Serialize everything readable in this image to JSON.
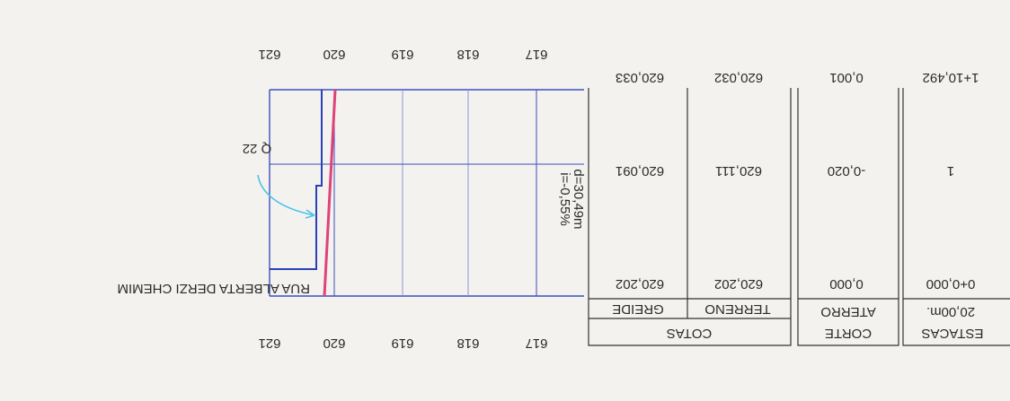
{
  "profile": {
    "street": "RUA ALBERTA DERZI CHEMIM",
    "point": "Q 22",
    "slope": "i=-0,55%",
    "distance": "d=30,49m",
    "elevations": [
      "621",
      "620",
      "619",
      "618",
      "617"
    ]
  },
  "table": {
    "headers": {
      "cotas": "COTAS",
      "greide": "GREIDE",
      "terreno": "TERRENO",
      "corte": "CORTE",
      "aterro": "ATERRO",
      "estacas": "ESTACAS",
      "spacing": "20,00m."
    },
    "rows": [
      [
        "0+0,000",
        "0,000",
        "620,202",
        "620,202"
      ],
      [
        "1",
        "-0,020",
        "620,111",
        "620,091"
      ],
      [
        "1+10,492",
        "0,001",
        "620,032",
        "620,033"
      ]
    ]
  }
}
